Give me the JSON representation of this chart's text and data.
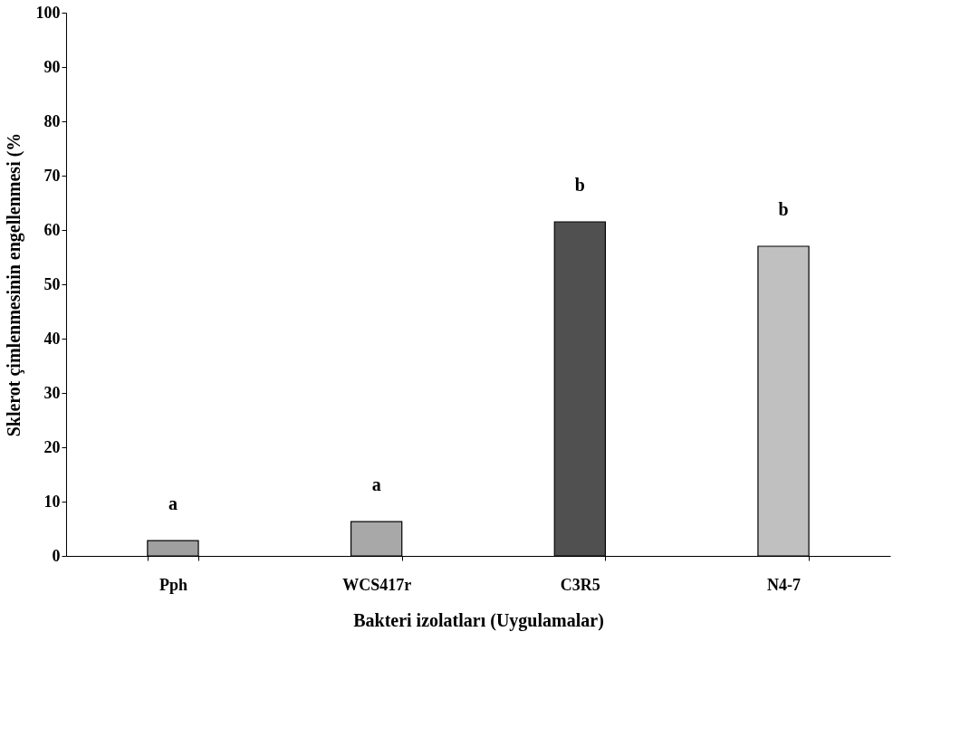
{
  "chart_data": {
    "type": "bar",
    "xlabel": "Bakteri izolatları (Uygulamalar)",
    "ylabel": "Sklerot çimlenmesinin engellenmesi (%",
    "categories": [
      "Pph",
      "WCS417r",
      "C3R5",
      "N4-7"
    ],
    "values": [
      2.8,
      6.3,
      61.5,
      57.0
    ],
    "colors": [
      "#a0a0a0",
      "#a8a8a8",
      "#505050",
      "#c0c0c0"
    ],
    "ylim": [
      0,
      100
    ],
    "yticks": [
      0,
      10,
      20,
      30,
      40,
      50,
      60,
      70,
      80,
      90,
      100
    ],
    "grid": false,
    "annotations": [
      "a",
      "a",
      "b",
      "b"
    ]
  }
}
